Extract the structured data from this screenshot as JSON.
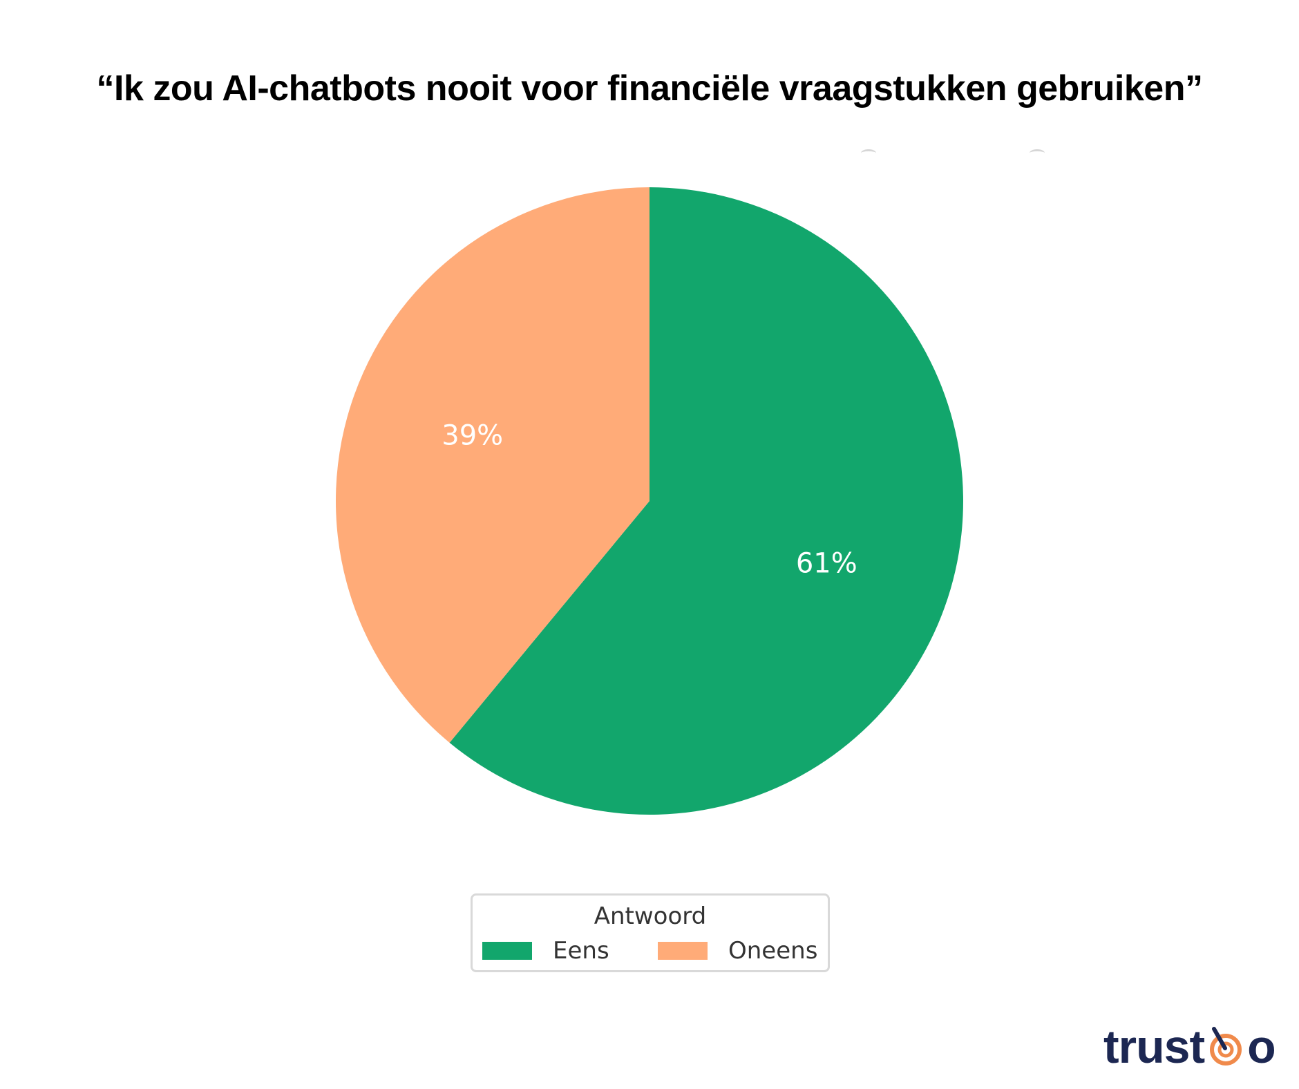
{
  "title": "“Ik zou AI-chatbots nooit voor financiële vraagstukken gebruiken”",
  "chart_data": {
    "type": "pie",
    "title": "“Ik zou AI-chatbots nooit voor financiële vraagstukken gebruiken”",
    "start_angle_deg": 90,
    "direction": "clockwise",
    "slices": [
      {
        "label": "Eens",
        "value": 61,
        "display": "61%",
        "color": "#12a66c"
      },
      {
        "label": "Oneens",
        "value": 39,
        "display": "39%",
        "color": "#ffab78"
      }
    ],
    "legend": {
      "title": "Antwoord",
      "placement": "bottom-center",
      "entries": [
        "Eens",
        "Oneens"
      ]
    }
  },
  "legend": {
    "title": "Antwoord",
    "items": [
      {
        "label": "Eens",
        "color": "#12a66c"
      },
      {
        "label": "Oneens",
        "color": "#ffab78"
      }
    ]
  },
  "logo": {
    "text_before": "trust",
    "text_after": "o",
    "color": "#1c2752",
    "accent": "#f08a4b"
  }
}
